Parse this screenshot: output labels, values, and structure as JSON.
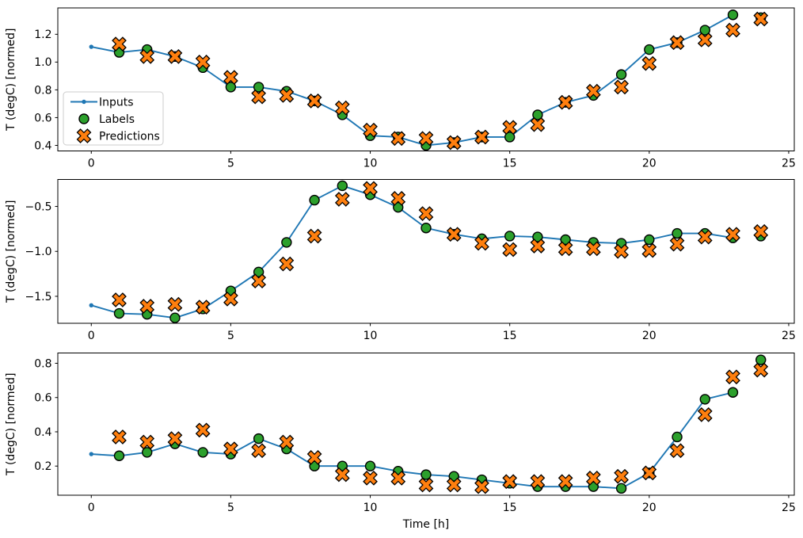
{
  "figure": {
    "background": "#ffffff",
    "xlabel": "Time [h]",
    "ylabel": "T (degC) [normed]",
    "colors": {
      "inputs": "#1f77b4",
      "labels": "#2ca02c",
      "predictions": "#ff7f0e",
      "marker_edge": "#000000"
    },
    "legend": {
      "entries": [
        "Inputs",
        "Labels",
        "Predictions"
      ],
      "position": "center-left-inside-top-subplot"
    }
  },
  "chart_data": [
    {
      "type": "line",
      "title": "",
      "xlabel": "",
      "ylabel": "T (degC) [normed]",
      "xlim": [
        -1.2,
        25.2
      ],
      "ylim": [
        0.36,
        1.39
      ],
      "xticks": [
        0,
        5,
        10,
        15,
        20,
        25
      ],
      "xticklabels": [
        "0",
        "5",
        "10",
        "15",
        "20",
        "25"
      ],
      "yticks": [
        0.4,
        0.6,
        0.8,
        1.0,
        1.2
      ],
      "yticklabels": [
        "0.4",
        "0.6",
        "0.8",
        "1.0",
        "1.2"
      ],
      "grid": false,
      "legend": true,
      "series": [
        {
          "name": "Inputs",
          "kind": "line",
          "marker": "point",
          "color": "#1f77b4",
          "x": [
            0,
            1,
            2,
            3,
            4,
            5,
            6,
            7,
            8,
            9,
            10,
            11,
            12,
            13,
            14,
            15,
            16,
            17,
            18,
            19,
            20,
            21,
            22,
            23
          ],
          "y": [
            1.11,
            1.07,
            1.09,
            1.04,
            0.96,
            0.82,
            0.82,
            0.79,
            0.72,
            0.62,
            0.47,
            0.46,
            0.4,
            0.42,
            0.46,
            0.46,
            0.62,
            0.71,
            0.76,
            0.91,
            1.09,
            1.14,
            1.23,
            1.34
          ]
        },
        {
          "name": "Labels",
          "kind": "scatter",
          "marker": "circle",
          "color": "#2ca02c",
          "edge": "#000000",
          "x": [
            1,
            2,
            3,
            4,
            5,
            6,
            7,
            8,
            9,
            10,
            11,
            12,
            13,
            14,
            15,
            16,
            17,
            18,
            19,
            20,
            21,
            22,
            23,
            24
          ],
          "y": [
            1.07,
            1.09,
            1.04,
            0.96,
            0.82,
            0.82,
            0.79,
            0.72,
            0.62,
            0.47,
            0.46,
            0.4,
            0.42,
            0.46,
            0.46,
            0.62,
            0.71,
            0.76,
            0.91,
            1.09,
            1.14,
            1.23,
            1.34,
            1.32
          ]
        },
        {
          "name": "Predictions",
          "kind": "scatter",
          "marker": "X",
          "color": "#ff7f0e",
          "edge": "#000000",
          "x": [
            1,
            2,
            3,
            4,
            5,
            6,
            7,
            8,
            9,
            10,
            11,
            12,
            13,
            14,
            15,
            16,
            17,
            18,
            19,
            20,
            21,
            22,
            23,
            24
          ],
          "y": [
            1.13,
            1.04,
            1.04,
            1.0,
            0.89,
            0.75,
            0.76,
            0.72,
            0.67,
            0.51,
            0.45,
            0.45,
            0.42,
            0.46,
            0.53,
            0.55,
            0.71,
            0.79,
            0.82,
            0.99,
            1.14,
            1.16,
            1.23,
            1.31
          ]
        }
      ]
    },
    {
      "type": "line",
      "title": "",
      "xlabel": "",
      "ylabel": "T (degC) [normed]",
      "xlim": [
        -1.2,
        25.2
      ],
      "ylim": [
        -1.8,
        -0.2
      ],
      "xticks": [
        0,
        5,
        10,
        15,
        20,
        25
      ],
      "xticklabels": [
        "0",
        "5",
        "10",
        "15",
        "20",
        "25"
      ],
      "yticks": [
        -0.5,
        -1.0,
        -1.5
      ],
      "yticklabels": [
        "−0.5",
        "−1.0",
        "−1.5"
      ],
      "grid": false,
      "legend": false,
      "series": [
        {
          "name": "Inputs",
          "kind": "line",
          "marker": "point",
          "color": "#1f77b4",
          "x": [
            0,
            1,
            2,
            3,
            4,
            5,
            6,
            7,
            8,
            9,
            10,
            11,
            12,
            13,
            14,
            15,
            16,
            17,
            18,
            19,
            20,
            21,
            22,
            23
          ],
          "y": [
            -1.6,
            -1.69,
            -1.7,
            -1.74,
            -1.64,
            -1.44,
            -1.23,
            -0.9,
            -0.43,
            -0.27,
            -0.37,
            -0.51,
            -0.74,
            -0.81,
            -0.86,
            -0.83,
            -0.84,
            -0.87,
            -0.9,
            -0.91,
            -0.87,
            -0.8,
            -0.8,
            -0.85
          ]
        },
        {
          "name": "Labels",
          "kind": "scatter",
          "marker": "circle",
          "color": "#2ca02c",
          "edge": "#000000",
          "x": [
            1,
            2,
            3,
            4,
            5,
            6,
            7,
            8,
            9,
            10,
            11,
            12,
            13,
            14,
            15,
            16,
            17,
            18,
            19,
            20,
            21,
            22,
            23,
            24
          ],
          "y": [
            -1.69,
            -1.7,
            -1.74,
            -1.64,
            -1.44,
            -1.23,
            -0.9,
            -0.43,
            -0.27,
            -0.37,
            -0.51,
            -0.74,
            -0.81,
            -0.86,
            -0.83,
            -0.84,
            -0.87,
            -0.9,
            -0.91,
            -0.87,
            -0.8,
            -0.8,
            -0.85,
            -0.83
          ]
        },
        {
          "name": "Predictions",
          "kind": "scatter",
          "marker": "X",
          "color": "#ff7f0e",
          "edge": "#000000",
          "x": [
            1,
            2,
            3,
            4,
            5,
            6,
            7,
            8,
            9,
            10,
            11,
            12,
            13,
            14,
            15,
            16,
            17,
            18,
            19,
            20,
            21,
            22,
            23,
            24
          ],
          "y": [
            -1.54,
            -1.61,
            -1.59,
            -1.62,
            -1.53,
            -1.33,
            -1.14,
            -0.83,
            -0.42,
            -0.3,
            -0.41,
            -0.58,
            -0.81,
            -0.91,
            -0.98,
            -0.94,
            -0.97,
            -0.97,
            -1.0,
            -0.99,
            -0.92,
            -0.84,
            -0.81,
            -0.78
          ]
        }
      ]
    },
    {
      "type": "line",
      "title": "",
      "xlabel": "Time [h]",
      "ylabel": "T (degC) [normed]",
      "xlim": [
        -1.2,
        25.2
      ],
      "ylim": [
        0.03,
        0.86
      ],
      "xticks": [
        0,
        5,
        10,
        15,
        20,
        25
      ],
      "xticklabels": [
        "0",
        "5",
        "10",
        "15",
        "20",
        "25"
      ],
      "yticks": [
        0.2,
        0.4,
        0.6,
        0.8
      ],
      "yticklabels": [
        "0.2",
        "0.4",
        "0.6",
        "0.8"
      ],
      "grid": false,
      "legend": false,
      "series": [
        {
          "name": "Inputs",
          "kind": "line",
          "marker": "point",
          "color": "#1f77b4",
          "x": [
            0,
            1,
            2,
            3,
            4,
            5,
            6,
            7,
            8,
            9,
            10,
            11,
            12,
            13,
            14,
            15,
            16,
            17,
            18,
            19,
            20,
            21,
            22,
            23
          ],
          "y": [
            0.27,
            0.26,
            0.28,
            0.33,
            0.28,
            0.27,
            0.36,
            0.3,
            0.2,
            0.2,
            0.2,
            0.17,
            0.15,
            0.14,
            0.12,
            0.1,
            0.08,
            0.08,
            0.08,
            0.07,
            0.16,
            0.37,
            0.59,
            0.63
          ]
        },
        {
          "name": "Labels",
          "kind": "scatter",
          "marker": "circle",
          "color": "#2ca02c",
          "edge": "#000000",
          "x": [
            1,
            2,
            3,
            4,
            5,
            6,
            7,
            8,
            9,
            10,
            11,
            12,
            13,
            14,
            15,
            16,
            17,
            18,
            19,
            20,
            21,
            22,
            23,
            24
          ],
          "y": [
            0.26,
            0.28,
            0.33,
            0.28,
            0.27,
            0.36,
            0.3,
            0.2,
            0.2,
            0.2,
            0.17,
            0.15,
            0.14,
            0.12,
            0.1,
            0.08,
            0.08,
            0.08,
            0.07,
            0.16,
            0.37,
            0.59,
            0.63,
            0.82
          ]
        },
        {
          "name": "Predictions",
          "kind": "scatter",
          "marker": "X",
          "color": "#ff7f0e",
          "edge": "#000000",
          "x": [
            1,
            2,
            3,
            4,
            5,
            6,
            7,
            8,
            9,
            10,
            11,
            12,
            13,
            14,
            15,
            16,
            17,
            18,
            19,
            20,
            21,
            22,
            23,
            24
          ],
          "y": [
            0.37,
            0.34,
            0.36,
            0.41,
            0.3,
            0.29,
            0.34,
            0.25,
            0.15,
            0.13,
            0.13,
            0.09,
            0.09,
            0.08,
            0.11,
            0.11,
            0.11,
            0.13,
            0.14,
            0.16,
            0.29,
            0.5,
            0.72,
            0.76
          ]
        }
      ]
    }
  ]
}
